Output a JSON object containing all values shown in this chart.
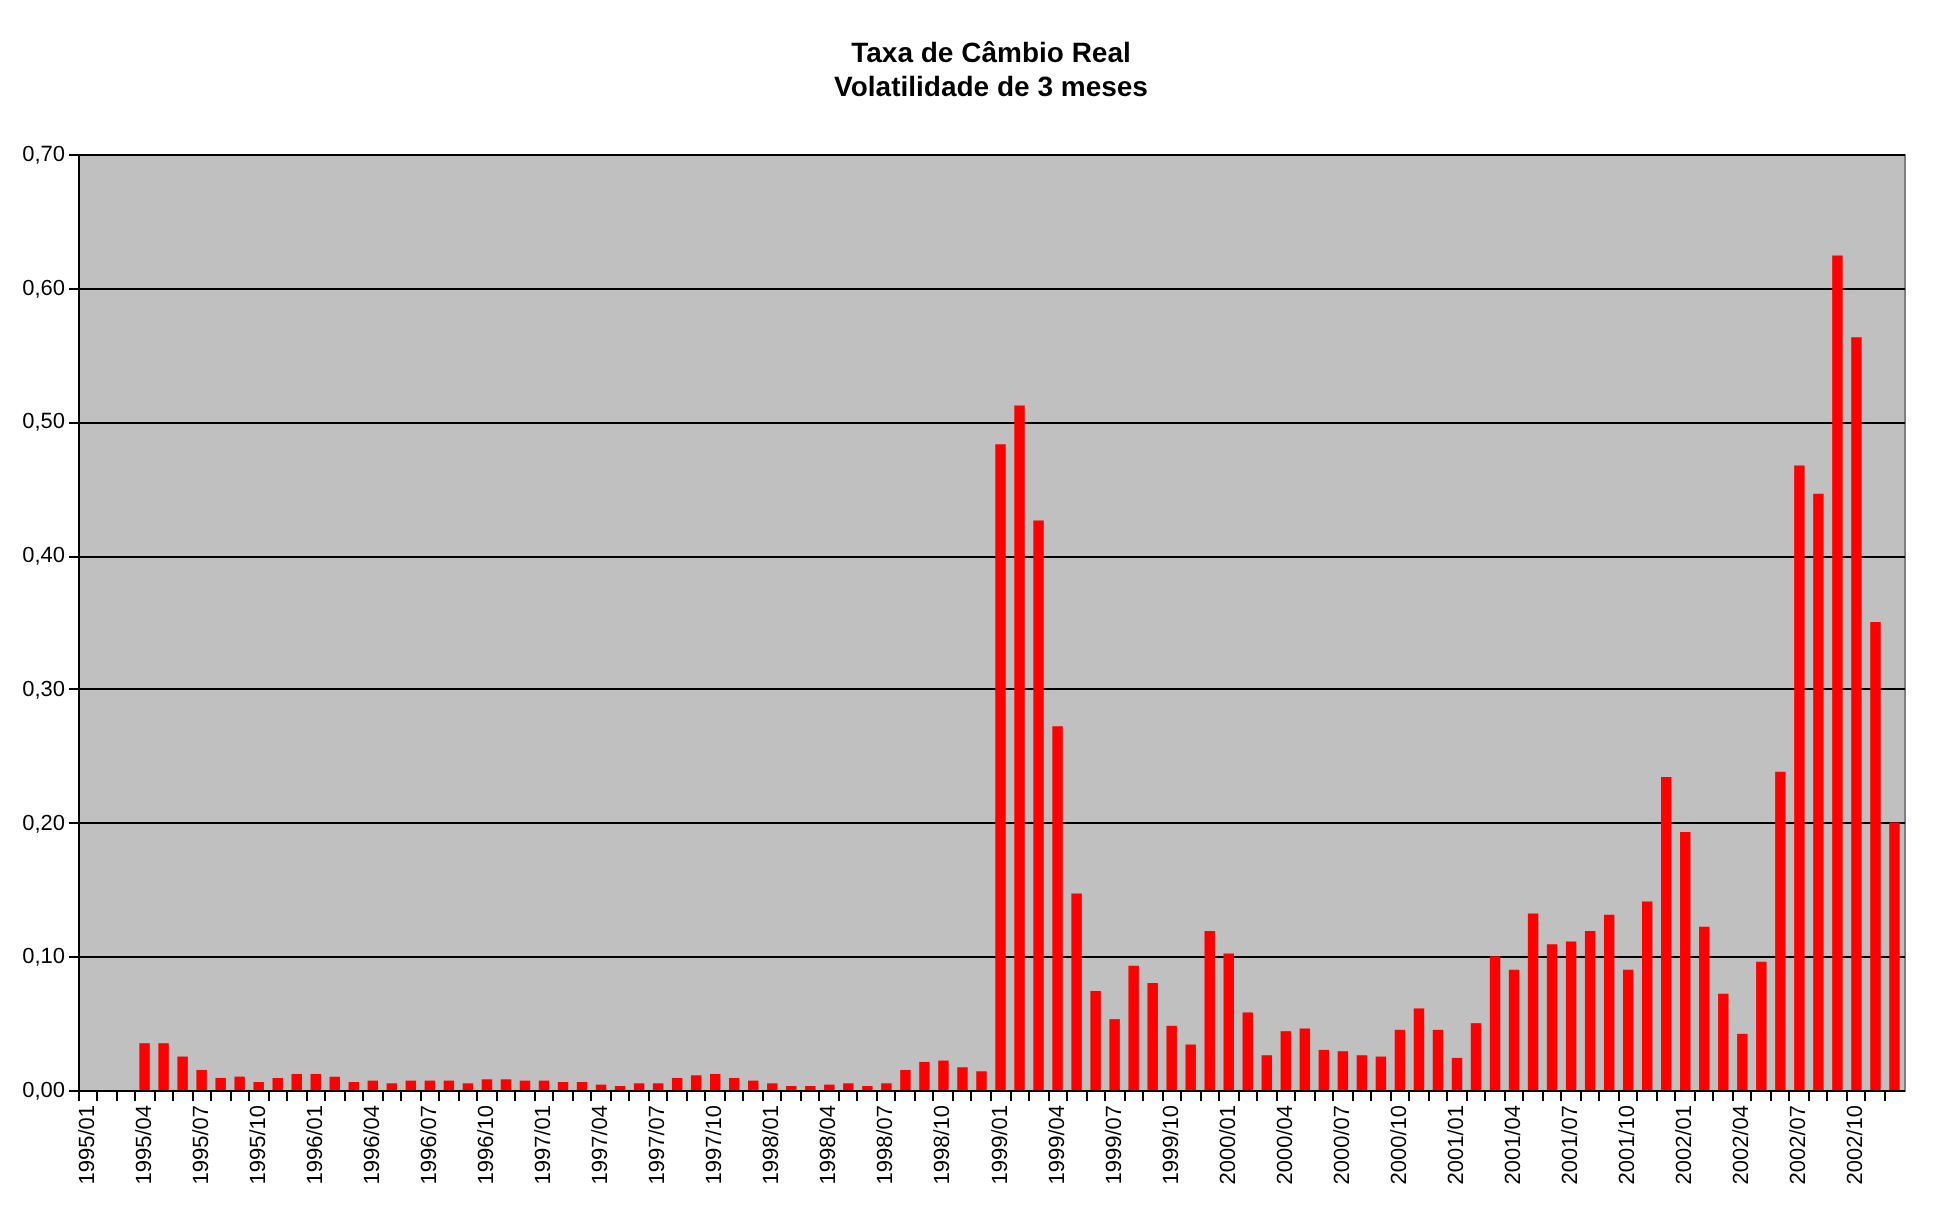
{
  "chart_data": {
    "type": "bar",
    "title": "Taxa de Câmbio Real",
    "subtitle": "Volatilidade de 3 meses",
    "categories": [
      "1995/01",
      null,
      null,
      "1995/04",
      null,
      null,
      "1995/07",
      null,
      null,
      "1995/10",
      null,
      null,
      "1996/01",
      null,
      null,
      "1996/04",
      null,
      null,
      "1996/07",
      null,
      null,
      "1996/10",
      null,
      null,
      "1997/01",
      null,
      null,
      "1997/04",
      null,
      null,
      "1997/07",
      null,
      null,
      "1997/10",
      null,
      null,
      "1998/01",
      null,
      null,
      "1998/04",
      null,
      null,
      "1998/07",
      null,
      null,
      "1998/10",
      null,
      null,
      "1999/01",
      null,
      null,
      "1999/04",
      null,
      null,
      "1999/07",
      null,
      null,
      "1999/10",
      null,
      null,
      "2000/01",
      null,
      null,
      "2000/04",
      null,
      null,
      "2000/07",
      null,
      null,
      "2000/10",
      null,
      null,
      "2001/01",
      null,
      null,
      "2001/04",
      null,
      null,
      "2001/07",
      null,
      null,
      "2001/10",
      null,
      null,
      "2002/01",
      null,
      null,
      "2002/04",
      null,
      null,
      "2002/07",
      null,
      null,
      "2002/10",
      null,
      null
    ],
    "values": [
      null,
      null,
      null,
      0.035,
      0.035,
      0.025,
      0.015,
      0.009,
      0.01,
      0.006,
      0.009,
      0.012,
      0.012,
      0.01,
      0.006,
      0.007,
      0.005,
      0.007,
      0.007,
      0.007,
      0.005,
      0.008,
      0.008,
      0.007,
      0.007,
      0.006,
      0.006,
      0.004,
      0.003,
      0.005,
      0.005,
      0.009,
      0.011,
      0.012,
      0.009,
      0.007,
      0.005,
      0.003,
      0.003,
      0.004,
      0.005,
      0.003,
      0.005,
      0.015,
      0.021,
      0.022,
      0.017,
      0.014,
      0.483,
      0.512,
      0.426,
      0.272,
      0.147,
      0.074,
      0.053,
      0.093,
      0.08,
      0.048,
      0.034,
      0.119,
      0.102,
      0.058,
      0.026,
      0.044,
      0.046,
      0.03,
      0.029,
      0.026,
      0.025,
      0.045,
      0.061,
      0.045,
      0.024,
      0.05,
      0.1,
      0.09,
      0.132,
      0.109,
      0.111,
      0.119,
      0.131,
      0.09,
      0.141,
      0.234,
      0.193,
      0.122,
      0.072,
      0.042,
      0.096,
      0.238,
      0.467,
      0.446,
      0.624,
      0.563,
      0.35,
      0.2
    ],
    "color": "#ff0000",
    "ylim": [
      0,
      0.7
    ],
    "yticks": [
      {
        "value": 0,
        "label": "0,00"
      },
      {
        "value": 0.1,
        "label": "0,10"
      },
      {
        "value": 0.2,
        "label": "0,20"
      },
      {
        "value": 0.3,
        "label": "0,30"
      },
      {
        "value": 0.4,
        "label": "0,40"
      },
      {
        "value": 0.5,
        "label": "0,50"
      },
      {
        "value": 0.6,
        "label": "0,60"
      },
      {
        "value": 0.7,
        "label": "0,70"
      }
    ],
    "grid": "y"
  }
}
